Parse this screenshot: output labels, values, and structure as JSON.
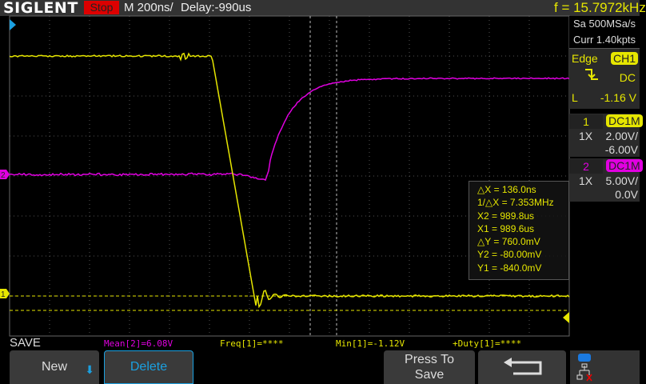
{
  "header": {
    "brand": "SIGLENT",
    "run_state": "Stop",
    "timebase": "M 200ns/",
    "delay": "Delay:-990us",
    "frequency": "f = 15.7972kHz"
  },
  "acq": {
    "sample_rate": "Sa 500MSa/s",
    "memory": "Curr 1.40kpts"
  },
  "trigger": {
    "type": "Edge",
    "source": "CH1",
    "slope_icon": "falling-edge-icon",
    "coupling": "DC",
    "level_label": "L",
    "level": "-1.16 V"
  },
  "channels": [
    {
      "num": "1",
      "coupling": "DC1M",
      "probe": "1X",
      "scale": "2.00V/",
      "offset": "-6.00V",
      "color": "#e6e600"
    },
    {
      "num": "2",
      "coupling": "DC1M",
      "probe": "1X",
      "scale": "5.00V/",
      "offset": "0.0V",
      "color": "#e000e0"
    }
  ],
  "cursors": {
    "lines": [
      "△X = 136.0ns",
      "1/△X = 7.353MHz",
      "X2 = 989.8us",
      "X1 = 989.6us",
      "△Y = 760.0mV",
      "Y2 = -80.00mV",
      "Y1 = -840.0mV"
    ]
  },
  "measurements": {
    "mean2": "Mean[2]=6.08V",
    "freq1": "Freq[1]=****",
    "min1": "Min[1]=-1.12V",
    "duty1": "+Duty[1]=****"
  },
  "menu": {
    "title": "SAVE",
    "new": "New",
    "delete": "Delete",
    "press_to_save": [
      "Press To",
      "Save"
    ],
    "back_icon": "return-arrow-icon"
  },
  "status_icons": [
    "usb-icon",
    "network-disconnected-icon"
  ]
}
